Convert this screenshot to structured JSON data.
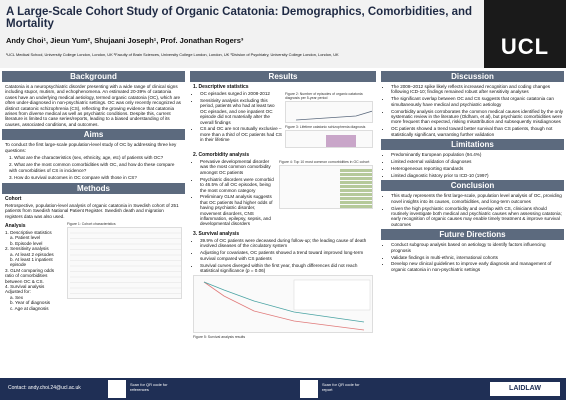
{
  "header": {
    "title": "A Large-Scale Cohort Study of Organic Catatonia: Demographics, Comorbidities, and Mortality",
    "authors": "Andy Choi¹, Jieun Yum², Shujaani Joseph¹, Prof. Jonathan Rogers³",
    "affiliations": "¹UCL Medical School, University College London, London, UK ²Faculty of Brain Sciences, University College London, London, UK ³Division of Psychiatry, University College London, London, UK",
    "logo": "UCL"
  },
  "background": {
    "title": "Background",
    "text": "Catatonia is a neuropsychiatric disorder presenting with a wide range of clinical signs including stupor, mutism, and echophenomena. An estimated 20-39% of catatonia cases have an underlying medical aetiology, termed organic catatonia (OC), which are often under-diagnosed in non-psychiatric settings. OC was only recently recognized as distinct catatonic schizophrenia (CS), reflecting the growing evidence that catatonia arises from diverse medical as well as psychiatric conditions. Despite this, current literature is limited to case series/reports, leading to a biased understanding of its causes, associated conditions, and outcomes."
  },
  "aims": {
    "title": "Aims",
    "intro": "To conduct the first large-scale population-level study of OC by addressing three key questions:",
    "items": [
      "1.  What are the characteristics (sex, ethnicity, age, etc) of patients with OC?",
      "2.  What are the most common comorbidities with OC, and how do these compare with comorbidities of CS in incidence?",
      "3.  How do survival outcomes in OC compare with those in CS?"
    ]
  },
  "methods": {
    "title": "Methods",
    "cohort_heading": "Cohort",
    "cohort_text": "Retrospective, population-level analysis of organic catatonia in Swedish cohort of 251 patients from Swedish National Patient Register. Swedish death and migration registers data was also used.",
    "analysis_heading": "Analysis",
    "analysis_items": [
      "1. Descriptive statistics",
      "a. Patient level",
      "b. Episode level",
      "2. Sensitivity analysis",
      "a. At least 2 episodes",
      "b. At least 1 inpatient episode",
      "3. GLM comparing odds ratio of comorbidities between OC & CS.",
      "4. Survival analysis",
      "Adjusted for:",
      "a. Sex",
      "b. Year of diagnosis",
      "c. Age at diagnosis"
    ],
    "table_caption": "Figure 1: Cohort characteristics"
  },
  "results": {
    "title": "Results",
    "parts": [
      {
        "heading": "1. Descriptive statistics",
        "bullets": [
          "OC episodes surged in 2008-2012",
          "Sensitivity analysis excluding this period, patients who had at least two OC episodes, and one inpatient OC episode did not materially alter the overall findings",
          "CS and OC are not mutually exclusive – more than a third of OC patients had CS in their lifetime"
        ],
        "figures": [
          "Figure 2: Number of episodes of organic catatonia diagnosis per 5-year period",
          "Figure 3: Lifetime catatonic schizophrenia diagnosis"
        ]
      },
      {
        "heading": "2. Comorbidity analysis",
        "bullets": [
          "Pervasive developmental disorder was the most common comorbidity amongst OC patients",
          "Psychiatric disorders were comorbid to 46.5% of all OC episodes, being the most common category",
          "Preliminary GLM analysis suggests that OC patients had higher odds of having psychiatric disorder, movement disorders, CNS inflammation, epilepsy, sepsis, and developmental disorders"
        ],
        "figures": [
          "Figure 4: Top 10 most common comorbidities in OC cohort"
        ]
      },
      {
        "heading": "3. Survival analysis",
        "bullets": [
          "39.9% of OC patients were deceased during follow-up; the leading cause of death involved diseases of the circulatory system",
          "Adjusting for covariates, OC patients showed a trend toward improved long-term survival compared with CS patients",
          "Survival curves diverged within the first year, though differences did not reach statistical significance (p = 0.06)"
        ],
        "figures": [
          "Figure 5: Survival analysis results"
        ]
      }
    ]
  },
  "discussion": {
    "title": "Discussion",
    "bullets": [
      "The 2008–2012 spike likely reflects increased recognition and coding changes following ICD-10; findings remained robust after sensitivity analyses",
      "The significant overlap between OC and CS suggests that organic catatonia can simultaneously have medical and psychiatric aetiology",
      "Comorbidity analysis corroborates the common medical causes identified by the only systematic review in the literature (Oldham, et al), but psychiatric comorbidities were more frequent than expected, risking misattribution and subsequently misdiagnoses",
      "OC patients showed a trend toward better survival than CS patients, though not statistically significant, warranting further validation"
    ]
  },
  "limitations": {
    "title": "Limitations",
    "bullets": [
      "Predominantly European population (94.4%)",
      "Limited external validation of diagnoses",
      "Heterogeneous reporting standards",
      "Limited diagnostic history prior to ICD-10 (1997)"
    ]
  },
  "conclusion": {
    "title": "Conclusion",
    "bullets": [
      "This study represents the first large-scale, population level analysis of OC, providing novel insights into its causes, comorbidities, and long-term outcomes",
      "Given the high psychiatric comorbidity and overlap with CS, clinicians should routinely investigate both medical and psychiatric causes when assessing catatonia; early recognition of organic causes may enable timely treatment & improve survival outcomes"
    ]
  },
  "future": {
    "title": "Future Directions",
    "bullets": [
      "Conduct subgroup analysis based on aetiology to identify factors influencing prognosis",
      "Validate findings in multi-ethnic, international cohorts",
      "Develop new clinical guidelines to improve early diagnosis and management of organic catatonia in non-psychiatric settings"
    ]
  },
  "footer": {
    "contact": "Contact: andy.choi.24@ucl.ac.uk",
    "qr_references": "Scan for QR code for references",
    "qr_report": "Scan for QR code for report",
    "logo": "LAIDLAW"
  }
}
